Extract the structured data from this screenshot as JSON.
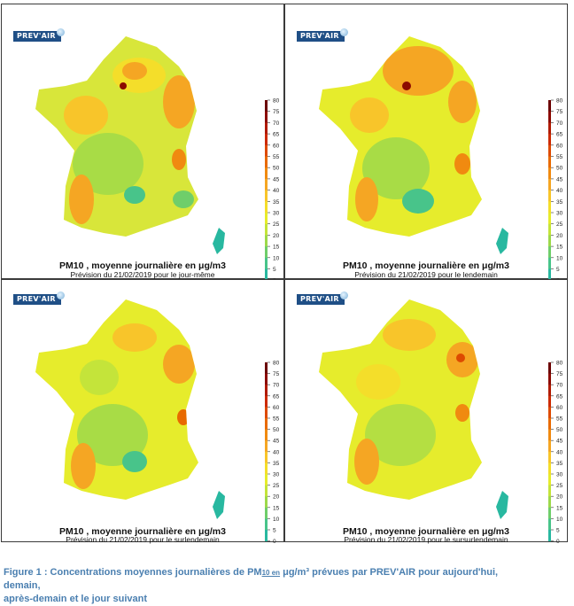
{
  "logo_text": "PREV'AIR",
  "map_title": "PM10 , moyenne journalière en μg/m3",
  "panels": [
    {
      "subtitle": "Prévision du 21/02/2019 pour le jour-même"
    },
    {
      "subtitle": "Prévision du 21/02/2019 pour le lendemain"
    },
    {
      "subtitle": "Prévision du 21/02/2019 pour le surlendemain"
    },
    {
      "subtitle": "Prévision du 21/02/2019 pour le sursurlendemain"
    }
  ],
  "scale": {
    "ticks": [
      "80",
      "75",
      "70",
      "65",
      "60",
      "55",
      "50",
      "45",
      "40",
      "35",
      "30",
      "25",
      "20",
      "15",
      "10",
      "5",
      "0"
    ],
    "colors": [
      "#6b0000",
      "#8c0a00",
      "#b01a00",
      "#cc2a00",
      "#dd4a00",
      "#e86a00",
      "#f08a10",
      "#f5a623",
      "#f8c52a",
      "#f4de2a",
      "#e6ec2c",
      "#c4e43a",
      "#9dd94a",
      "#6fce6a",
      "#48c48a",
      "#28b8a0",
      "#10a8a8"
    ]
  },
  "caption": {
    "prefix": "Figure 1 : Concentrations moyennes journalières de PM",
    "sub": "10  en",
    "suffix": " μg/m³ prévues par PREV'AIR pour aujourd'hui, demain,",
    "line2": "après-demain et le jour suivant"
  }
}
